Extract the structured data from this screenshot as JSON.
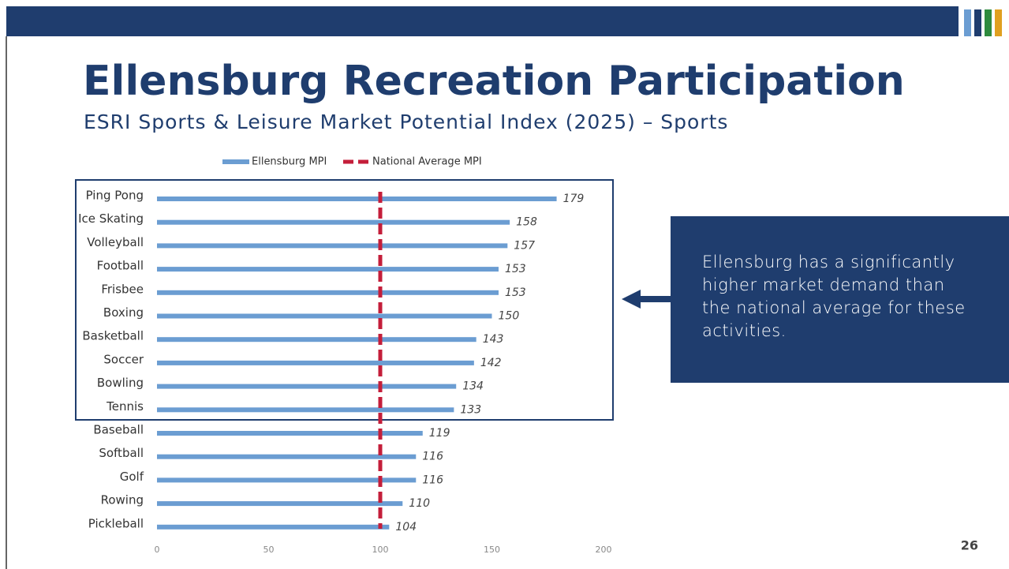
{
  "slide": {
    "title": "Ellensburg Recreation Participation",
    "subtitle": "ESRI Sports & Leisure Market Potential Index (2025) – Sports",
    "callout": "Ellensburg has a significantly higher market demand than the national average for these activities.",
    "page_number": "26"
  },
  "chart_data": {
    "type": "bar",
    "orientation": "horizontal",
    "categories": [
      "Ping Pong",
      "Ice Skating",
      "Volleyball",
      "Football",
      "Frisbee",
      "Boxing",
      "Basketball",
      "Soccer",
      "Bowling",
      "Tennis",
      "Baseball",
      "Softball",
      "Golf",
      "Rowing",
      "Pickleball"
    ],
    "series": [
      {
        "name": "Ellensburg MPI",
        "color": "#6b9dd2",
        "values": [
          179,
          158,
          157,
          153,
          153,
          150,
          143,
          142,
          134,
          133,
          119,
          116,
          116,
          110,
          104
        ]
      }
    ],
    "reference_line": {
      "name": "National Average MPI",
      "value": 100,
      "color": "#c41e3a"
    },
    "xlim": [
      0,
      200
    ],
    "xticks": [
      0,
      50,
      100,
      150,
      200
    ],
    "legend": "top"
  }
}
